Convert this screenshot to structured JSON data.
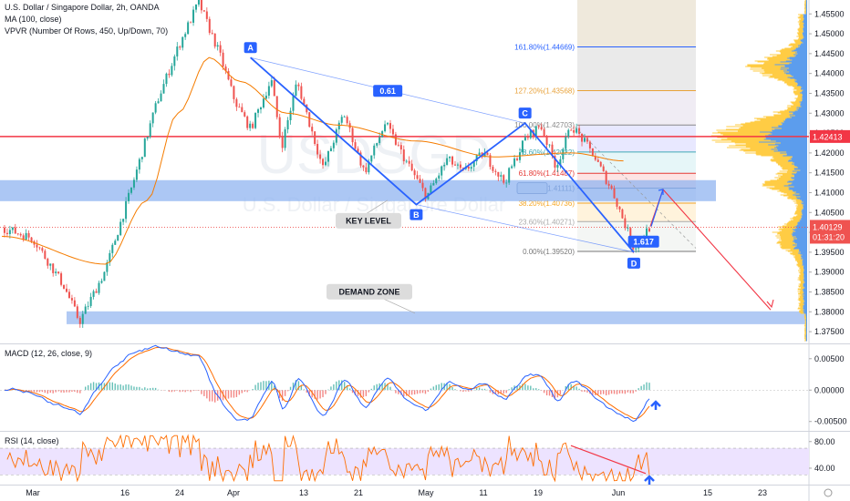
{
  "header": {
    "title": "U.S. Dollar / Singapore Dollar, 2h, OANDA",
    "ma": "MA (100, close)",
    "vpvr": "VPVR (Number Of Rows, 450, Up/Down, 70)",
    "macd": "MACD (12, 26, close, 9)",
    "rsi": "RSI (14, close)"
  },
  "watermark": {
    "symbol": "USDSGD",
    "name": "U.S. Dollar / Singapore Dollar"
  },
  "colors": {
    "up": "#26a69a",
    "down": "#ef5350",
    "pattern": "#2962ff",
    "ma": "#f57c00",
    "resistance": "#f23645",
    "zone": "#90b4f0",
    "macd": "#2962ff",
    "signal": "#ff6d00",
    "rsi": "#ff6d00",
    "rsi_band": "#ede3ff",
    "vp_up": "#ffcc44",
    "vp_down": "#5c9ded"
  },
  "chart_data": [
    {
      "type": "candlestick",
      "panel": "price",
      "symbol": "USDSGD",
      "timeframe": "2h",
      "x_ticks": [
        "Mar",
        "16",
        "24",
        "Apr",
        "13",
        "21",
        "May",
        "11",
        "19",
        "Jun",
        "15",
        "23"
      ],
      "y_ticks": [
        "1.45500",
        "1.45000",
        "1.44500",
        "1.44000",
        "1.43500",
        "1.43000",
        "1.42500",
        "1.42000",
        "1.41500",
        "1.41000",
        "1.40500",
        "1.40000",
        "1.39500",
        "1.39000",
        "1.38500",
        "1.38000",
        "1.37500"
      ],
      "ylim": [
        1.3725,
        1.4585
      ],
      "key_points": [
        {
          "t": 0,
          "price": 1.4012
        },
        {
          "t": 6,
          "price": 1.3985
        },
        {
          "t": 12,
          "price": 1.3865
        },
        {
          "t": 15,
          "price": 1.3775
        },
        {
          "t": 20,
          "price": 1.3905
        },
        {
          "t": 25,
          "price": 1.411
        },
        {
          "t": 30,
          "price": 1.433
        },
        {
          "t": 34,
          "price": 1.4465
        },
        {
          "t": 38,
          "price": 1.458
        },
        {
          "t": 42,
          "price": 1.445
        },
        {
          "t": 45,
          "price": 1.433
        },
        {
          "t": 48,
          "price": 1.426
        },
        {
          "t": 52,
          "price": 1.4385
        },
        {
          "t": 54,
          "price": 1.4215
        },
        {
          "t": 57,
          "price": 1.438
        },
        {
          "t": 62,
          "price": 1.416
        },
        {
          "t": 66,
          "price": 1.43
        },
        {
          "t": 70,
          "price": 1.415
        },
        {
          "t": 74,
          "price": 1.4275
        },
        {
          "t": 78,
          "price": 1.418
        },
        {
          "t": 82,
          "price": 1.409
        },
        {
          "t": 86,
          "price": 1.4185
        },
        {
          "t": 89,
          "price": 1.415
        },
        {
          "t": 93,
          "price": 1.42
        },
        {
          "t": 97,
          "price": 1.4125
        },
        {
          "t": 101,
          "price": 1.4235
        },
        {
          "t": 104,
          "price": 1.427
        },
        {
          "t": 107,
          "price": 1.4165
        },
        {
          "t": 110,
          "price": 1.427
        },
        {
          "t": 114,
          "price": 1.42
        },
        {
          "t": 118,
          "price": 1.41
        },
        {
          "t": 122,
          "price": 1.396
        },
        {
          "t": 125,
          "price": 1.4012
        }
      ],
      "ma_100": [
        {
          "t": 0,
          "price": 1.399
        },
        {
          "t": 20,
          "price": 1.392
        },
        {
          "t": 28,
          "price": 1.408
        },
        {
          "t": 34,
          "price": 1.43
        },
        {
          "t": 40,
          "price": 1.444
        },
        {
          "t": 46,
          "price": 1.438
        },
        {
          "t": 55,
          "price": 1.43
        },
        {
          "t": 65,
          "price": 1.427
        },
        {
          "t": 80,
          "price": 1.423
        },
        {
          "t": 95,
          "price": 1.419
        },
        {
          "t": 110,
          "price": 1.42
        },
        {
          "t": 120,
          "price": 1.418
        }
      ],
      "current_price": {
        "value": "1.40129",
        "countdown": "01:31:20"
      },
      "resistance_price": {
        "value": 1.42413,
        "label": "1.42413"
      },
      "key_level_zone": {
        "low": 1.409,
        "high": 1.412,
        "label": "KEY LEVEL"
      },
      "demand_zone": {
        "low": 1.3778,
        "high": 1.3792,
        "label": "DEMAND ZONE"
      },
      "harmonic": {
        "points": [
          {
            "label": "A",
            "t": 48,
            "price": 1.444
          },
          {
            "label": "B",
            "t": 80,
            "price": 1.407
          },
          {
            "label": "C",
            "t": 101,
            "price": 1.4275
          },
          {
            "label": "D",
            "t": 122,
            "price": 1.395
          }
        ],
        "ratio_ab": "0.61",
        "ratio_cd": "1.617"
      },
      "fib_levels": [
        {
          "ratio": "161.80%",
          "price": 1.44669,
          "label": "161.80%(1.44669)",
          "color": "#2962ff",
          "fill": "#eaeaea"
        },
        {
          "ratio": "127.20%",
          "price": 1.43568,
          "label": "127.20%(1.43568)",
          "color": "#e8a23a",
          "fill": "#f0ecf4"
        },
        {
          "ratio": "100.00%",
          "price": 1.42703,
          "label": "100.00%(1.42703)",
          "color": "#888888",
          "fill": "#e8e8ff"
        },
        {
          "ratio": "78.60%",
          "price": 1.42022,
          "label": "78.60%(1.42022)",
          "color": "#3fa9b4",
          "fill": "#e6f6f8"
        },
        {
          "ratio": "61.80%",
          "price": 1.41487,
          "label": "61.80%(1.41487)",
          "color": "#e53935",
          "fill": "#fde4e4"
        },
        {
          "ratio": "50.00%",
          "price": 1.41111,
          "label": "50.00%(1.41111)",
          "color": "#4a6fa5",
          "fill": "#eaf0f8"
        },
        {
          "ratio": "38.20%",
          "price": 1.40736,
          "label": "38.20%(1.40736)",
          "color": "#f5a623",
          "fill": "#fff3dc"
        },
        {
          "ratio": "23.60%",
          "price": 1.40271,
          "label": "23.60%(1.40271)",
          "color": "#aaaaaa",
          "fill": "#f4f6f4"
        },
        {
          "ratio": "0.00%",
          "price": 1.3952,
          "label": "0.00%(1.39520)",
          "color": "#777777",
          "fill": "#ffffff"
        }
      ],
      "fib_top_extra": {
        "price": 1.4585
      }
    },
    {
      "type": "line",
      "panel": "macd",
      "title": "MACD (12, 26, close, 9)",
      "y_ticks": [
        "0.00500",
        "0.00000",
        "-0.00500"
      ],
      "ylim": [
        -0.0062,
        0.007
      ]
    },
    {
      "type": "line",
      "panel": "rsi",
      "title": "RSI (14, close)",
      "y_ticks": [
        "80.00",
        "40.00"
      ],
      "band": [
        30,
        70
      ],
      "ylim": [
        18,
        92
      ]
    }
  ]
}
